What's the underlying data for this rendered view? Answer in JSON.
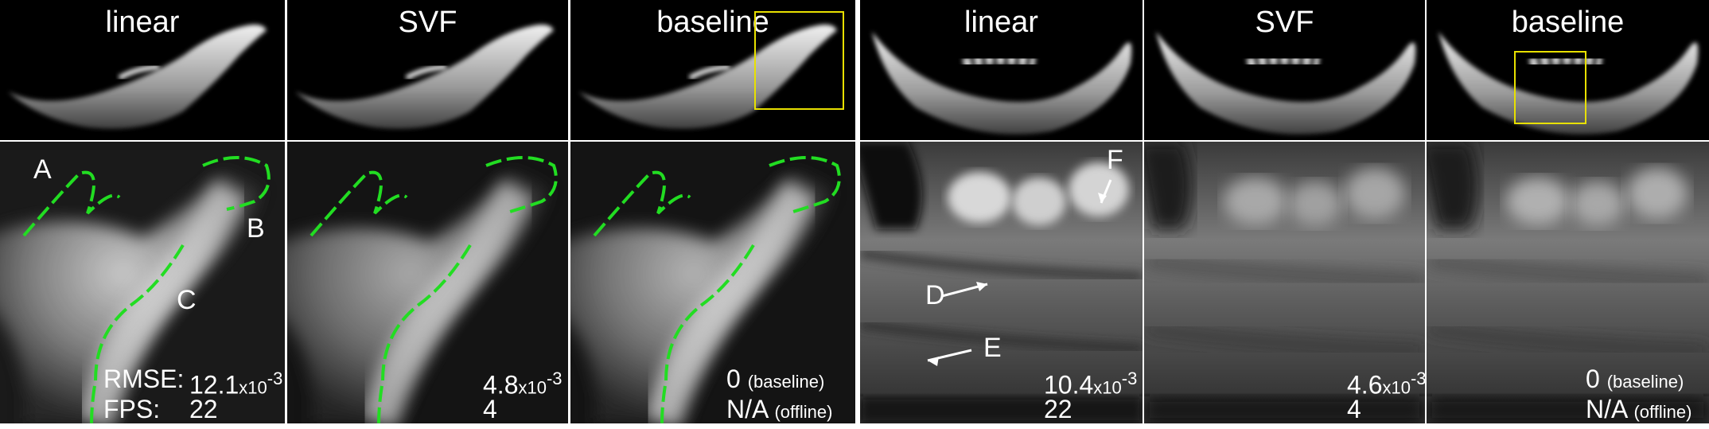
{
  "columns": [
    "linear",
    "SVF",
    "baseline"
  ],
  "row_labels": {
    "rmse": "RMSE:",
    "fps": "FPS:"
  },
  "left_set": {
    "annotations": [
      "A",
      "B",
      "C"
    ],
    "metrics": [
      {
        "rmse": "12.1",
        "rmse_scale": "x10",
        "rmse_exp": "-3",
        "fps": "22"
      },
      {
        "rmse": "4.8",
        "rmse_scale": "x10",
        "rmse_exp": "-3",
        "fps": "4"
      },
      {
        "rmse": "0",
        "rmse_note": "(baseline)",
        "fps": "N/A",
        "fps_note": "(offline)"
      }
    ]
  },
  "right_set": {
    "annotations": [
      "D",
      "E",
      "F"
    ],
    "metrics": [
      {
        "rmse": "10.4",
        "rmse_scale": "x10",
        "rmse_exp": "-3",
        "fps": "22"
      },
      {
        "rmse": "4.6",
        "rmse_scale": "x10",
        "rmse_exp": "-3",
        "fps": "4"
      },
      {
        "rmse": "0",
        "rmse_note": "(baseline)",
        "fps": "N/A",
        "fps_note": "(offline)"
      }
    ]
  },
  "colors": {
    "contour": "#22dd22",
    "roi_box": "#e8e000",
    "text": "#ffffff",
    "background": "#000000"
  }
}
